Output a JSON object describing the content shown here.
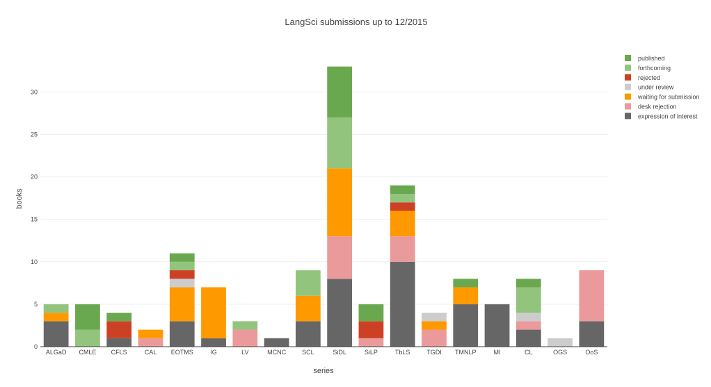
{
  "chart_data": {
    "type": "bar",
    "stacked": true,
    "title": "LangSci submissions up to 12/2015",
    "xlabel": "series",
    "ylabel": "books",
    "ylim": [
      0,
      34
    ],
    "yticks": [
      0,
      5,
      10,
      15,
      20,
      25,
      30
    ],
    "grid": true,
    "legend_position": "top-right",
    "categories": [
      "ALGaD",
      "CMLE",
      "CFLS",
      "CAL",
      "EOTMS",
      "IG",
      "LV",
      "MCNC",
      "SCL",
      "SiDL",
      "SiLP",
      "TbLS",
      "TGDI",
      "TMNLP",
      "MI",
      "CL",
      "OGS",
      "OoS"
    ],
    "series": [
      {
        "name": "expression of interest",
        "color": "#666666",
        "values": [
          3,
          0,
          1,
          0,
          3,
          1,
          0,
          1,
          3,
          8,
          0,
          10,
          0,
          5,
          5,
          2,
          0,
          3
        ]
      },
      {
        "name": "desk rejection",
        "color": "#ea9a9a",
        "values": [
          0,
          0,
          0,
          1,
          0,
          0,
          2,
          0,
          0,
          5,
          1,
          3,
          2,
          0,
          0,
          1,
          0,
          6
        ]
      },
      {
        "name": "waiting for submission",
        "color": "#ff9900",
        "values": [
          1,
          0,
          0,
          1,
          4,
          6,
          0,
          0,
          3,
          8,
          0,
          3,
          1,
          2,
          0,
          0,
          0,
          0
        ]
      },
      {
        "name": "under review",
        "color": "#cccccc",
        "values": [
          0,
          0,
          0,
          0,
          1,
          0,
          0,
          0,
          0,
          0,
          0,
          0,
          1,
          0,
          0,
          1,
          1,
          0
        ]
      },
      {
        "name": "rejected",
        "color": "#cc4125",
        "values": [
          0,
          0,
          2,
          0,
          1,
          0,
          0,
          0,
          0,
          0,
          2,
          1,
          0,
          0,
          0,
          0,
          0,
          0
        ]
      },
      {
        "name": "forthcoming",
        "color": "#93c47d",
        "values": [
          1,
          2,
          0,
          0,
          1,
          0,
          1,
          0,
          3,
          6,
          0,
          1,
          0,
          0,
          0,
          3,
          0,
          0
        ]
      },
      {
        "name": "published",
        "color": "#6aa84f",
        "values": [
          0,
          3,
          1,
          0,
          1,
          0,
          0,
          0,
          0,
          6,
          2,
          1,
          0,
          1,
          0,
          1,
          0,
          0
        ]
      }
    ],
    "legend_order": [
      "published",
      "forthcoming",
      "rejected",
      "under review",
      "waiting for submission",
      "desk rejection",
      "expression of interest"
    ]
  }
}
